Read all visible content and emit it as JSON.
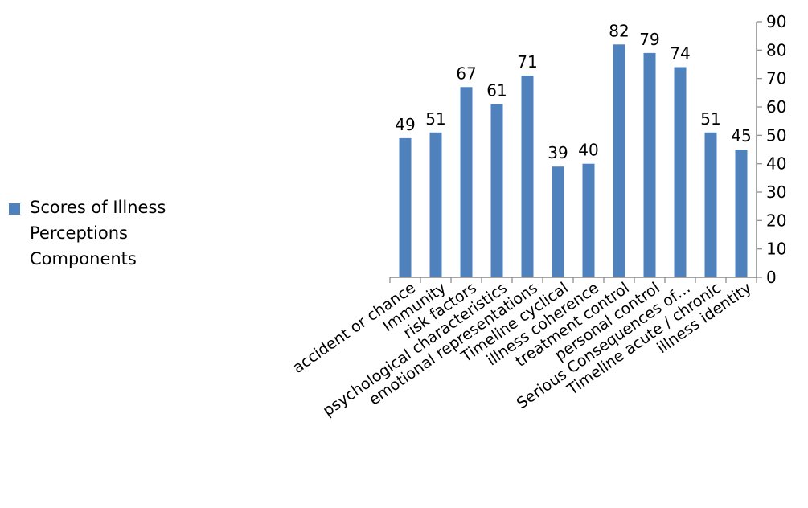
{
  "chart_data": {
    "type": "bar",
    "categories": [
      "accident or chance",
      "Immunity",
      "risk factors",
      "psychological characteristics",
      "emotional representations",
      "Timeline cyclical",
      "illness coherence",
      "treatment control",
      "personal control",
      "Serious Consequences of…",
      "Timeline acute / chronic",
      "illness identity"
    ],
    "series": [
      {
        "name": "Scores of Illness Perceptions Components",
        "values": [
          49,
          51,
          67,
          61,
          71,
          39,
          40,
          82,
          79,
          74,
          51,
          45
        ]
      }
    ],
    "ylim": [
      0,
      90
    ],
    "yticks": [
      0,
      10,
      20,
      30,
      40,
      50,
      60,
      70,
      80,
      90
    ],
    "y_axis_position": "right",
    "data_labels": true,
    "grid": false,
    "legend_position": "left",
    "colors": {
      "bar": "#4F81BD",
      "axis": "#868686"
    }
  }
}
